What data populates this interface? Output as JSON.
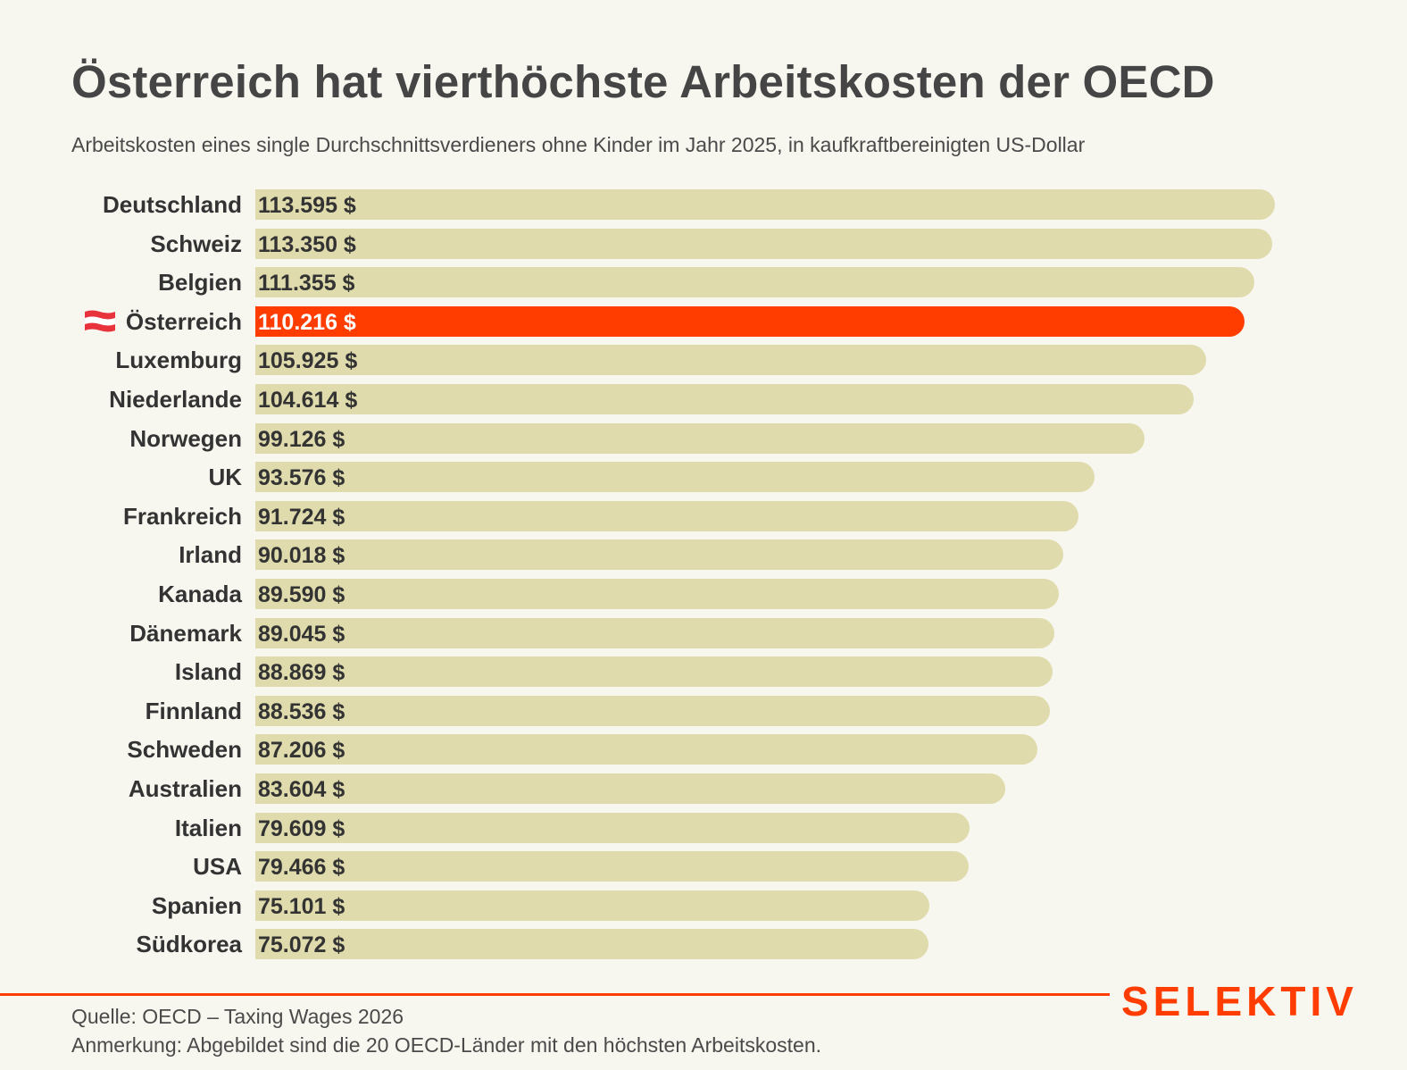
{
  "colors": {
    "background": "#f7f6ef",
    "bar_default": "#dfdbac",
    "bar_highlight": "#ff3d00",
    "text": "#333333",
    "text_highlight": "#ffffff",
    "brand": "#ff3d00",
    "flag_red": "#e8323c",
    "flag_white": "#ffffff"
  },
  "header": {
    "title": "Österreich hat vierthöchste Arbeitskosten der OECD",
    "subtitle": "Arbeitskosten eines single Durchschnittsverdieners ohne Kinder im Jahr 2025, in kaufkraftbereinigten US-Dollar"
  },
  "chart_data": {
    "type": "bar",
    "orientation": "horizontal",
    "title": "Österreich hat vierthöchste Arbeitskosten der OECD",
    "subtitle": "Arbeitskosten eines single Durchschnittsverdieners ohne Kinder im Jahr 2025, in kaufkraftbereinigten US-Dollar",
    "xlabel": "",
    "ylabel": "",
    "unit": "$",
    "xlim": [
      0,
      113595
    ],
    "grid": false,
    "legend": "none",
    "highlight": "Österreich",
    "categories": [
      "Deutschland",
      "Schweiz",
      "Belgien",
      "Österreich",
      "Luxemburg",
      "Niederlande",
      "Norwegen",
      "UK",
      "Frankreich",
      "Irland",
      "Kanada",
      "Dänemark",
      "Island",
      "Finnland",
      "Schweden",
      "Australien",
      "Italien",
      "USA",
      "Spanien",
      "Südkorea"
    ],
    "values": [
      113595,
      113350,
      111355,
      110216,
      105925,
      104614,
      99126,
      93576,
      91724,
      90018,
      89590,
      89045,
      88869,
      88536,
      87206,
      83604,
      79609,
      79466,
      75101,
      75072
    ],
    "value_labels": [
      "113.595 $",
      "113.350 $",
      "111.355 $",
      "110.216 $",
      "105.925 $",
      "104.614 $",
      "99.126 $",
      "93.576 $",
      "91.724 $",
      "90.018 $",
      "89.590 $",
      "89.045 $",
      "88.869 $",
      "88.536 $",
      "87.206 $",
      "83.604 $",
      "79.609 $",
      "79.466 $",
      "75.101 $",
      "75.072 $"
    ],
    "flags": {
      "Österreich": "austria-flag-icon"
    }
  },
  "footer": {
    "brand": "SELEKTIV",
    "source": "Quelle: OECD – Taxing Wages 2026",
    "note": "Anmerkung: Abgebildet sind die 20 OECD-Länder mit den höchsten Arbeitskosten."
  }
}
